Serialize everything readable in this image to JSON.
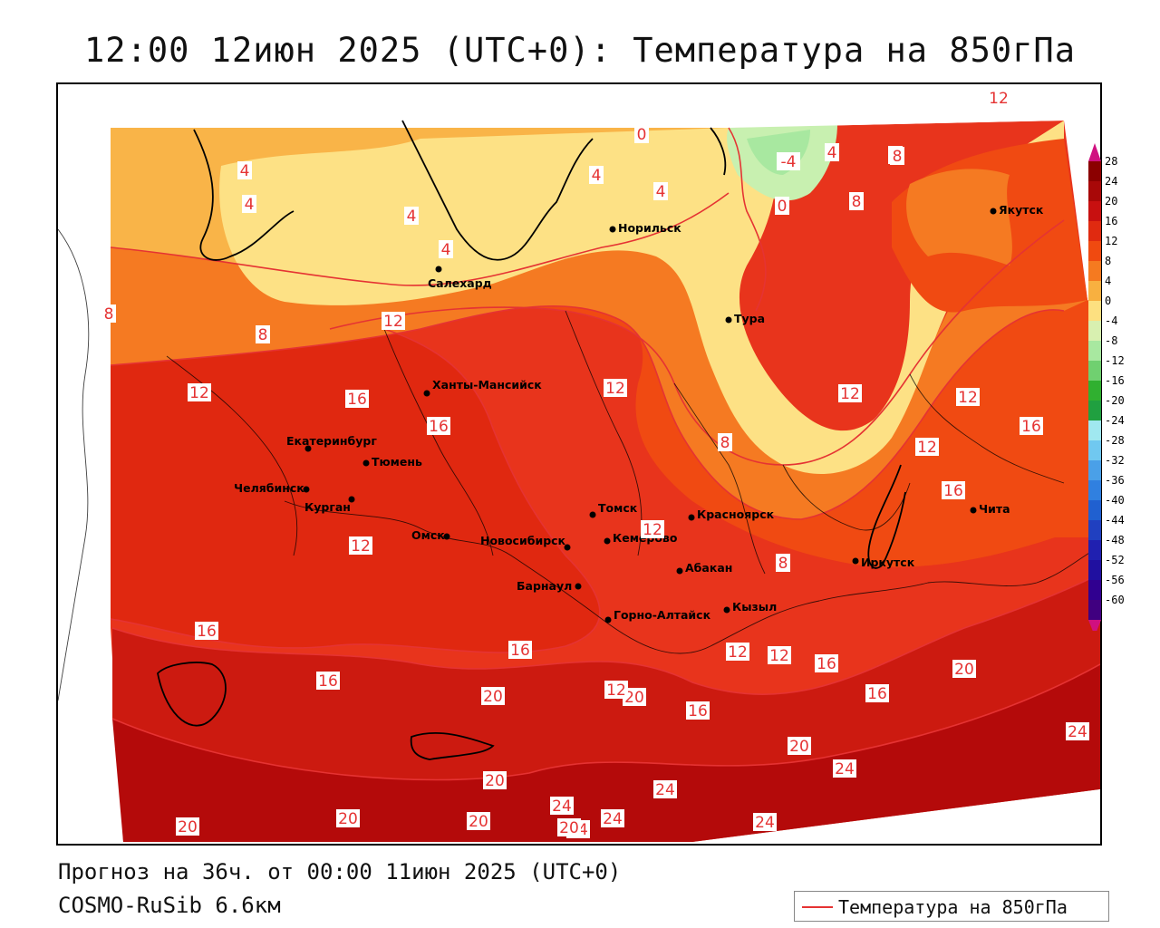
{
  "title": "12:00 12июн 2025 (UTC+0): Температура на 850гПа",
  "footer": {
    "forecast": "Прогноз на 36ч. от 00:00 11июн 2025 (UTC+0)",
    "model": "COSMO-RuSib 6.6км"
  },
  "legend": {
    "line_label": "Температура на 850гПа",
    "line_color": "#e53333"
  },
  "colorbar": {
    "ticks": [
      "28",
      "24",
      "20",
      "16",
      "12",
      "8",
      "4",
      "0",
      "-4",
      "-8",
      "-12",
      "-16",
      "-20",
      "-24",
      "-28",
      "-32",
      "-36",
      "-40",
      "-44",
      "-48",
      "-52",
      "-56",
      "-60"
    ],
    "colors": [
      "#8b0000",
      "#a80808",
      "#c81010",
      "#e02a10",
      "#f04a10",
      "#f57a20",
      "#f8b040",
      "#fde080",
      "#d8f0b0",
      "#a8e8a0",
      "#70d070",
      "#30b030",
      "#20a040",
      "#a0e8f0",
      "#70c8f0",
      "#4aa0e8",
      "#3080e0",
      "#2060d0",
      "#2040c0",
      "#2020b0",
      "#2010a0",
      "#300090",
      "#400080"
    ]
  },
  "cities": [
    {
      "name": "Норильск"
    },
    {
      "name": "Якутск"
    },
    {
      "name": "Салехард"
    },
    {
      "name": "Тура"
    },
    {
      "name": "Ханты-Мансийск"
    },
    {
      "name": "Екатеринбург"
    },
    {
      "name": "Тюмень"
    },
    {
      "name": "Челябинск"
    },
    {
      "name": "Курган"
    },
    {
      "name": "Омск"
    },
    {
      "name": "Новосибирск"
    },
    {
      "name": "Томск"
    },
    {
      "name": "Кемерово"
    },
    {
      "name": "Красноярск"
    },
    {
      "name": "Барнаул"
    },
    {
      "name": "Абакан"
    },
    {
      "name": "Горно-Алтайск"
    },
    {
      "name": "Кызыл"
    },
    {
      "name": "Иркутск"
    },
    {
      "name": "Чита"
    }
  ],
  "isotherm_labels": [
    "12",
    "0",
    "-4",
    "4",
    "8",
    "4",
    "4",
    "4",
    "0",
    "4",
    "4",
    "8",
    "8",
    "8",
    "4",
    "12",
    "8",
    "12",
    "16",
    "16",
    "12",
    "12",
    "12",
    "8",
    "12",
    "16",
    "16",
    "12",
    "8",
    "12",
    "16",
    "16",
    "20",
    "20",
    "16",
    "16",
    "12",
    "12",
    "16",
    "20",
    "20",
    "24",
    "24",
    "20",
    "24",
    "24",
    "20",
    "24",
    "24",
    "20",
    "20",
    "24",
    "20",
    "16",
    "12"
  ],
  "colors": {
    "sea": "#ffffff",
    "isoline": "#e53333"
  }
}
